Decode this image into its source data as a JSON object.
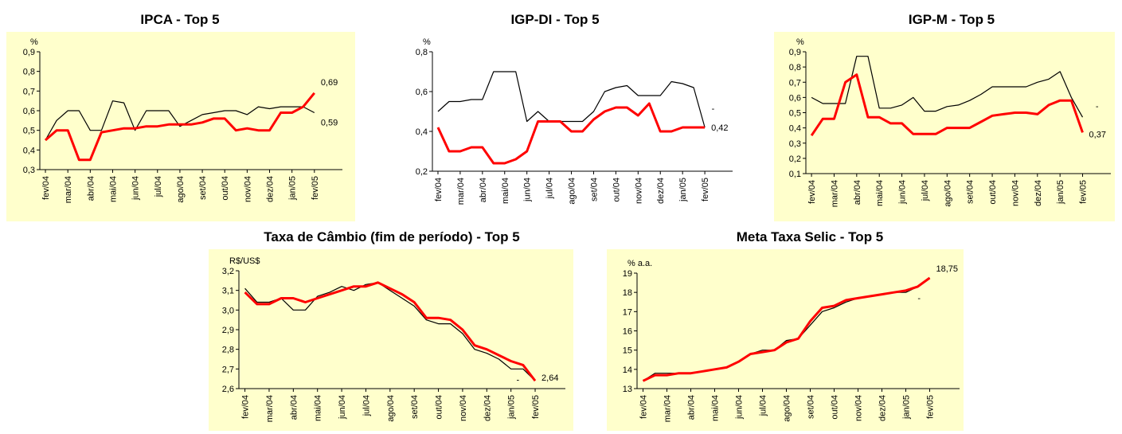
{
  "chart_data": [
    {
      "type": "line",
      "title": "IPCA - Top 5",
      "y_unit": "%",
      "categories": [
        "fev/04",
        null,
        "mar/04",
        null,
        "abr/04",
        null,
        "mai/04",
        null,
        "jun/04",
        null,
        "jul/04",
        null,
        "ago/04",
        null,
        "set/04",
        null,
        "out/04",
        null,
        "nov/04",
        null,
        "dez/04",
        null,
        "jan/05",
        null,
        "fev/05"
      ],
      "series": [
        {
          "color": "#000000",
          "values": [
            0.45,
            0.55,
            0.6,
            0.6,
            0.5,
            0.5,
            0.65,
            0.64,
            0.5,
            0.6,
            0.6,
            0.6,
            0.52,
            0.55,
            0.58,
            0.59,
            0.6,
            0.6,
            0.58,
            0.62,
            0.61,
            0.62,
            0.62,
            0.62,
            0.59
          ],
          "end_label": "0,59"
        },
        {
          "color": "#ff0000",
          "values": [
            0.45,
            0.5,
            0.5,
            0.35,
            0.35,
            0.49,
            0.5,
            0.51,
            0.51,
            0.52,
            0.52,
            0.53,
            0.53,
            0.53,
            0.54,
            0.56,
            0.56,
            0.5,
            0.51,
            0.5,
            0.5,
            0.59,
            0.59,
            0.62,
            0.69
          ],
          "end_label": "0,69"
        }
      ],
      "ylim": [
        0.3,
        0.9
      ],
      "yticks": [
        {
          "value": 0.3,
          "label": "0,3"
        },
        {
          "value": 0.4,
          "label": "0,4"
        },
        {
          "value": 0.5,
          "label": "0,5"
        },
        {
          "value": 0.6,
          "label": "0,6"
        },
        {
          "value": 0.7,
          "label": "0,7"
        },
        {
          "value": 0.8,
          "label": "0,8"
        },
        {
          "value": 0.9,
          "label": "0,9"
        }
      ],
      "background": "#ffffcc"
    },
    {
      "type": "line",
      "title": "IGP-DI - Top 5",
      "y_unit": "%",
      "categories": [
        "fev/04",
        null,
        "mar/04",
        null,
        "abr/04",
        null,
        "mai/04",
        null,
        "jun/04",
        null,
        "jul/04",
        null,
        "ago/04",
        null,
        "set/04",
        null,
        "out/04",
        null,
        "nov/04",
        null,
        "dez/04",
        null,
        "jan/05",
        null,
        "fev/05"
      ],
      "series": [
        {
          "color": "#000000",
          "values": [
            0.5,
            0.55,
            0.55,
            0.56,
            0.56,
            0.7,
            0.7,
            0.7,
            0.45,
            0.5,
            0.45,
            0.45,
            0.45,
            0.45,
            0.5,
            0.6,
            0.62,
            0.63,
            0.58,
            0.58,
            0.58,
            0.65,
            0.64,
            0.62,
            0.42
          ]
        },
        {
          "color": "#ff0000",
          "values": [
            0.42,
            0.3,
            0.3,
            0.32,
            0.32,
            0.24,
            0.24,
            0.26,
            0.3,
            0.45,
            0.45,
            0.45,
            0.4,
            0.4,
            0.46,
            0.5,
            0.52,
            0.52,
            0.48,
            0.54,
            0.4,
            0.4,
            0.42,
            0.42,
            0.42
          ],
          "end_label": "0,42"
        }
      ],
      "annotations": [
        "-"
      ],
      "ylim": [
        0.2,
        0.8
      ],
      "yticks": [
        {
          "value": 0.2,
          "label": "0,2"
        },
        {
          "value": 0.4,
          "label": "0,4"
        },
        {
          "value": 0.6,
          "label": "0,6"
        },
        {
          "value": 0.8,
          "label": "0,8"
        }
      ],
      "background": "#ffffff"
    },
    {
      "type": "line",
      "title": "IGP-M - Top 5",
      "y_unit": "%",
      "categories": [
        "fev/04",
        null,
        "mar/04",
        null,
        "abr/04",
        null,
        "mai/04",
        null,
        "jun/04",
        null,
        "jul/04",
        null,
        "ago/04",
        null,
        "set/04",
        null,
        "out/04",
        null,
        "nov/04",
        null,
        "dez/04",
        null,
        "jan/05",
        null,
        "fev/05"
      ],
      "series": [
        {
          "color": "#000000",
          "values": [
            0.6,
            0.56,
            0.56,
            0.56,
            0.87,
            0.87,
            0.53,
            0.53,
            0.55,
            0.6,
            0.51,
            0.51,
            0.54,
            0.55,
            0.58,
            0.62,
            0.67,
            0.67,
            0.67,
            0.67,
            0.7,
            0.72,
            0.77,
            0.6,
            0.47
          ]
        },
        {
          "color": "#ff0000",
          "values": [
            0.35,
            0.46,
            0.46,
            0.7,
            0.75,
            0.47,
            0.47,
            0.43,
            0.43,
            0.36,
            0.36,
            0.36,
            0.4,
            0.4,
            0.4,
            0.44,
            0.48,
            0.49,
            0.5,
            0.5,
            0.49,
            0.55,
            0.58,
            0.58,
            0.37
          ],
          "end_label": "0,37"
        }
      ],
      "annotations": [
        "-"
      ],
      "ylim": [
        0.1,
        0.9
      ],
      "yticks": [
        {
          "value": 0.1,
          "label": "0,1"
        },
        {
          "value": 0.2,
          "label": "0,2"
        },
        {
          "value": 0.3,
          "label": "0,3"
        },
        {
          "value": 0.4,
          "label": "0,4"
        },
        {
          "value": 0.5,
          "label": "0,5"
        },
        {
          "value": 0.6,
          "label": "0,6"
        },
        {
          "value": 0.7,
          "label": "0,7"
        },
        {
          "value": 0.8,
          "label": "0,8"
        },
        {
          "value": 0.9,
          "label": "0,9"
        }
      ],
      "background": "#ffffcc"
    },
    {
      "type": "line",
      "title": "Taxa de Câmbio (fim de período) - Top 5",
      "y_unit": "R$/US$",
      "categories": [
        "fev/04",
        null,
        "mar/04",
        null,
        "abr/04",
        null,
        "mai/04",
        null,
        "jun/04",
        null,
        "jul/04",
        null,
        "ago/04",
        null,
        "set/04",
        null,
        "out/04",
        null,
        "nov/04",
        null,
        "dez/04",
        null,
        "jan/05",
        null,
        "fev/05"
      ],
      "series": [
        {
          "color": "#000000",
          "values": [
            3.11,
            3.04,
            3.04,
            3.06,
            3.0,
            3.0,
            3.07,
            3.09,
            3.12,
            3.1,
            3.13,
            3.14,
            3.1,
            3.06,
            3.02,
            2.95,
            2.93,
            2.93,
            2.88,
            2.8,
            2.78,
            2.75,
            2.7,
            2.7,
            2.64
          ]
        },
        {
          "color": "#ff0000",
          "values": [
            3.09,
            3.03,
            3.03,
            3.06,
            3.06,
            3.04,
            3.06,
            3.08,
            3.1,
            3.12,
            3.12,
            3.14,
            3.11,
            3.08,
            3.04,
            2.96,
            2.96,
            2.95,
            2.9,
            2.82,
            2.8,
            2.77,
            2.74,
            2.72,
            2.64
          ],
          "end_label": "2,64"
        }
      ],
      "annotations": [
        "-"
      ],
      "ylim": [
        2.6,
        3.2
      ],
      "yticks": [
        {
          "value": 2.6,
          "label": "2,6"
        },
        {
          "value": 2.7,
          "label": "2,7"
        },
        {
          "value": 2.8,
          "label": "2,8"
        },
        {
          "value": 2.9,
          "label": "2,9"
        },
        {
          "value": 3.0,
          "label": "3,0"
        },
        {
          "value": 3.1,
          "label": "3,1"
        },
        {
          "value": 3.2,
          "label": "3,2"
        }
      ],
      "background": "#ffffcc"
    },
    {
      "type": "line",
      "title": "Meta Taxa Selic - Top 5",
      "y_unit": "% a.a.",
      "categories": [
        "fev/04",
        null,
        "mar/04",
        null,
        "abr/04",
        null,
        "mai/04",
        null,
        "jun/04",
        null,
        "jul/04",
        null,
        "ago/04",
        null,
        "set/04",
        null,
        "out/04",
        null,
        "nov/04",
        null,
        "dez/04",
        null,
        "jan/05",
        null,
        "fev/05"
      ],
      "series": [
        {
          "color": "#000000",
          "values": [
            13.4,
            13.8,
            13.8,
            13.8,
            13.8,
            13.9,
            14.0,
            14.1,
            14.4,
            14.8,
            15.0,
            15.0,
            15.5,
            15.6,
            16.3,
            17.0,
            17.2,
            17.5,
            17.7,
            17.8,
            17.9,
            18.0,
            18.0,
            18.3,
            18.75
          ]
        },
        {
          "color": "#ff0000",
          "values": [
            13.4,
            13.7,
            13.7,
            13.8,
            13.8,
            13.9,
            14.0,
            14.1,
            14.4,
            14.8,
            14.9,
            15.0,
            15.4,
            15.6,
            16.5,
            17.2,
            17.3,
            17.6,
            17.7,
            17.8,
            17.9,
            18.0,
            18.1,
            18.3,
            18.75
          ],
          "end_label": "18,75"
        }
      ],
      "annotations": [
        "-"
      ],
      "ylim": [
        13,
        19
      ],
      "yticks": [
        13,
        14,
        15,
        16,
        17,
        18,
        19
      ],
      "background": "#ffffcc"
    }
  ]
}
